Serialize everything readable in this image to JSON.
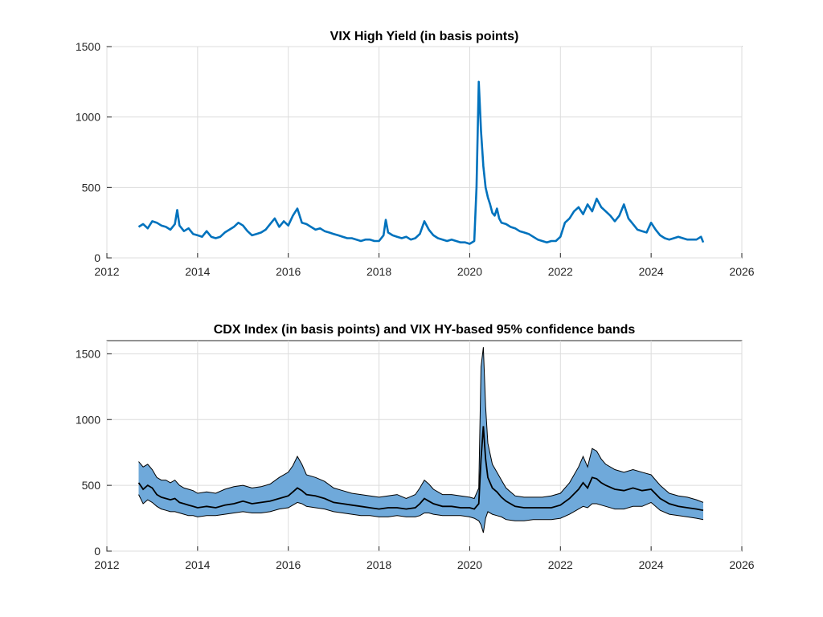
{
  "chart_data": [
    {
      "type": "line",
      "title": "VIX High Yield (in basis points)",
      "xlabel": "",
      "ylabel": "",
      "xlim": [
        2012,
        2026
      ],
      "ylim": [
        0,
        1500
      ],
      "x_ticks": [
        "2012",
        "2014",
        "2016",
        "2018",
        "2020",
        "2022",
        "2024",
        "2026"
      ],
      "y_ticks": [
        "0",
        "500",
        "1000",
        "1500"
      ],
      "grid": true,
      "series_color": "#0072BD",
      "series": [
        {
          "x": [
            2012.7,
            2012.8,
            2012.9,
            2013.0,
            2013.1,
            2013.2,
            2013.3,
            2013.4,
            2013.5,
            2013.55,
            2013.6,
            2013.7,
            2013.8,
            2013.9,
            2014.0,
            2014.1,
            2014.2,
            2014.3,
            2014.4,
            2014.5,
            2014.6,
            2014.7,
            2014.8,
            2014.9,
            2015.0,
            2015.1,
            2015.2,
            2015.3,
            2015.4,
            2015.5,
            2015.6,
            2015.7,
            2015.8,
            2015.9,
            2016.0,
            2016.1,
            2016.2,
            2016.3,
            2016.4,
            2016.5,
            2016.6,
            2016.7,
            2016.8,
            2016.9,
            2017.0,
            2017.1,
            2017.2,
            2017.3,
            2017.4,
            2017.5,
            2017.6,
            2017.7,
            2017.8,
            2017.9,
            2018.0,
            2018.1,
            2018.15,
            2018.2,
            2018.3,
            2018.4,
            2018.5,
            2018.6,
            2018.7,
            2018.8,
            2018.9,
            2019.0,
            2019.1,
            2019.2,
            2019.3,
            2019.4,
            2019.5,
            2019.6,
            2019.7,
            2019.8,
            2019.9,
            2020.0,
            2020.1,
            2020.15,
            2020.2,
            2020.25,
            2020.3,
            2020.35,
            2020.4,
            2020.45,
            2020.5,
            2020.55,
            2020.6,
            2020.65,
            2020.7,
            2020.8,
            2020.9,
            2021.0,
            2021.1,
            2021.2,
            2021.3,
            2021.4,
            2021.5,
            2021.6,
            2021.7,
            2021.8,
            2021.9,
            2022.0,
            2022.1,
            2022.2,
            2022.3,
            2022.4,
            2022.5,
            2022.6,
            2022.7,
            2022.8,
            2022.9,
            2023.0,
            2023.1,
            2023.2,
            2023.3,
            2023.4,
            2023.5,
            2023.6,
            2023.7,
            2023.8,
            2023.9,
            2024.0,
            2024.1,
            2024.2,
            2024.3,
            2024.4,
            2024.5,
            2024.6,
            2024.7,
            2024.8,
            2024.9,
            2025.0,
            2025.1,
            2025.15
          ],
          "values": [
            220,
            240,
            210,
            260,
            250,
            230,
            220,
            200,
            240,
            340,
            230,
            190,
            210,
            170,
            160,
            150,
            190,
            150,
            140,
            150,
            180,
            200,
            220,
            250,
            230,
            190,
            160,
            170,
            180,
            200,
            240,
            280,
            220,
            260,
            230,
            300,
            350,
            250,
            240,
            220,
            200,
            210,
            190,
            180,
            170,
            160,
            150,
            140,
            140,
            130,
            120,
            130,
            130,
            120,
            120,
            160,
            270,
            180,
            160,
            150,
            140,
            150,
            130,
            140,
            170,
            260,
            200,
            160,
            140,
            130,
            120,
            130,
            120,
            110,
            110,
            100,
            120,
            500,
            1250,
            900,
            650,
            500,
            430,
            380,
            320,
            300,
            350,
            280,
            250,
            240,
            220,
            210,
            190,
            180,
            170,
            150,
            130,
            120,
            110,
            120,
            120,
            150,
            250,
            280,
            330,
            360,
            310,
            380,
            330,
            420,
            360,
            330,
            300,
            260,
            300,
            380,
            280,
            240,
            200,
            190,
            180,
            250,
            200,
            160,
            140,
            130,
            140,
            150,
            140,
            130,
            130,
            130,
            150,
            110
          ]
        }
      ]
    },
    {
      "type": "area",
      "title": "CDX Index (in basis points) and VIX HY-based 95% confidence bands",
      "xlabel": "",
      "ylabel": "",
      "xlim": [
        2012,
        2026
      ],
      "ylim": [
        0,
        1600
      ],
      "x_ticks": [
        "2012",
        "2014",
        "2016",
        "2018",
        "2020",
        "2022",
        "2024",
        "2026"
      ],
      "y_ticks": [
        "0",
        "500",
        "1000",
        "1500"
      ],
      "grid": true,
      "band_color": "#6FA9DA",
      "line_color": "#000000",
      "series": [
        {
          "x": [
            2012.7,
            2012.8,
            2012.9,
            2013.0,
            2013.1,
            2013.2,
            2013.3,
            2013.4,
            2013.5,
            2013.6,
            2013.7,
            2013.8,
            2013.9,
            2014.0,
            2014.2,
            2014.4,
            2014.6,
            2014.8,
            2015.0,
            2015.2,
            2015.4,
            2015.6,
            2015.8,
            2016.0,
            2016.1,
            2016.2,
            2016.3,
            2016.4,
            2016.6,
            2016.8,
            2017.0,
            2017.2,
            2017.4,
            2017.6,
            2017.8,
            2018.0,
            2018.2,
            2018.4,
            2018.6,
            2018.8,
            2018.9,
            2019.0,
            2019.1,
            2019.2,
            2019.4,
            2019.6,
            2019.8,
            2020.0,
            2020.1,
            2020.2,
            2020.25,
            2020.3,
            2020.35,
            2020.4,
            2020.5,
            2020.6,
            2020.7,
            2020.8,
            2021.0,
            2021.2,
            2021.4,
            2021.6,
            2021.8,
            2022.0,
            2022.2,
            2022.4,
            2022.5,
            2022.6,
            2022.7,
            2022.8,
            2022.9,
            2023.0,
            2023.2,
            2023.4,
            2023.6,
            2023.8,
            2024.0,
            2024.2,
            2024.4,
            2024.6,
            2024.8,
            2025.0,
            2025.15
          ],
          "center": [
            520,
            470,
            500,
            480,
            430,
            410,
            400,
            390,
            400,
            370,
            360,
            350,
            340,
            330,
            340,
            330,
            350,
            360,
            380,
            360,
            370,
            380,
            400,
            420,
            450,
            480,
            460,
            430,
            420,
            400,
            370,
            360,
            350,
            340,
            330,
            320,
            330,
            330,
            320,
            330,
            360,
            400,
            380,
            360,
            340,
            340,
            330,
            330,
            320,
            360,
            700,
            950,
            700,
            560,
            480,
            450,
            410,
            380,
            340,
            330,
            330,
            330,
            330,
            350,
            400,
            470,
            520,
            480,
            560,
            550,
            520,
            500,
            470,
            460,
            480,
            460,
            470,
            400,
            360,
            340,
            330,
            320,
            310
          ],
          "lower": [
            430,
            360,
            390,
            370,
            340,
            320,
            310,
            300,
            300,
            290,
            280,
            270,
            270,
            260,
            270,
            270,
            280,
            290,
            300,
            290,
            290,
            300,
            320,
            330,
            350,
            370,
            360,
            340,
            330,
            320,
            300,
            290,
            280,
            270,
            270,
            260,
            260,
            270,
            260,
            260,
            270,
            290,
            290,
            280,
            270,
            270,
            270,
            260,
            250,
            230,
            200,
            140,
            250,
            300,
            280,
            270,
            260,
            240,
            230,
            230,
            240,
            240,
            240,
            250,
            280,
            320,
            340,
            330,
            360,
            360,
            350,
            340,
            320,
            320,
            340,
            340,
            370,
            310,
            280,
            270,
            260,
            250,
            240
          ],
          "upper": [
            680,
            640,
            660,
            620,
            560,
            540,
            540,
            520,
            540,
            500,
            480,
            470,
            460,
            440,
            450,
            440,
            470,
            490,
            500,
            480,
            490,
            510,
            560,
            600,
            650,
            720,
            660,
            580,
            560,
            530,
            480,
            460,
            440,
            430,
            420,
            410,
            420,
            430,
            400,
            430,
            480,
            540,
            510,
            470,
            430,
            430,
            420,
            410,
            400,
            480,
            1400,
            1550,
            1100,
            820,
            660,
            600,
            540,
            480,
            420,
            410,
            410,
            410,
            420,
            440,
            520,
            640,
            720,
            640,
            780,
            760,
            700,
            660,
            620,
            600,
            620,
            600,
            580,
            500,
            440,
            420,
            410,
            390,
            370
          ]
        }
      ]
    }
  ]
}
